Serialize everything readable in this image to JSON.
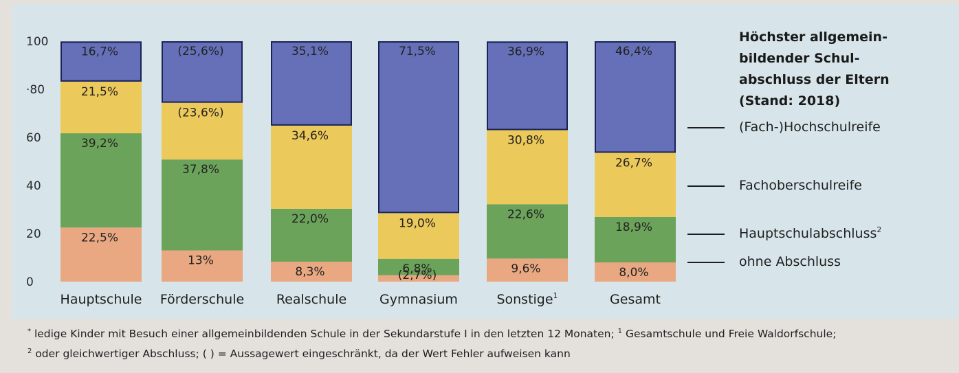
{
  "chart_data": {
    "type": "bar",
    "stacked": true,
    "categories": [
      "Hauptschule",
      "Förderschule",
      "Realschule",
      "Gymnasium",
      "Sonstige",
      "Gesamt"
    ],
    "category_superscripts": [
      "",
      "",
      "",
      "",
      "1",
      ""
    ],
    "yticks": [
      "100",
      "·80",
      "60",
      "40",
      "20",
      "0"
    ],
    "ylim": [
      0,
      100
    ],
    "title": [
      "Höchster allgemein-",
      "bildender Schul-",
      "abschluss der Eltern",
      "(Stand: 2018)"
    ],
    "series": [
      {
        "name": "ohne Abschluss",
        "superscript": "",
        "color": "#e9a882",
        "values": [
          22.5,
          13,
          8.3,
          2.7,
          9.6,
          8.0
        ],
        "labels": [
          "22,5%",
          "13%",
          "8,3%",
          "(2,7%)",
          "9,6%",
          "8,0%"
        ]
      },
      {
        "name": "Hauptschulabschluss",
        "superscript": "2",
        "color": "#6ca35a",
        "values": [
          39.2,
          37.8,
          22.0,
          6.8,
          22.6,
          18.9
        ],
        "labels": [
          "39,2%",
          "37,8%",
          "22,0%",
          "6,8%",
          "22,6%",
          "18,9%"
        ]
      },
      {
        "name": "Fachoberschulreife",
        "superscript": "",
        "color": "#ecc95b",
        "values": [
          21.5,
          23.6,
          34.6,
          19.0,
          30.8,
          26.7
        ],
        "labels": [
          "21,5%",
          "(23,6%)",
          "34,6%",
          "19,0%",
          "30,8%",
          "26,7%"
        ]
      },
      {
        "name": "(Fach-)Hochschulreife",
        "superscript": "",
        "color": "#6570b8",
        "values": [
          16.7,
          25.6,
          35.1,
          71.5,
          36.9,
          46.4
        ],
        "labels": [
          "16,7%",
          "(25,6%)",
          "35,1%",
          "71,5%",
          "36,9%",
          "46,4%"
        ]
      }
    ],
    "legend_position": "right"
  },
  "footnote": {
    "line1_marker": "*",
    "line1": "ledige Kinder mit Besuch einer allgemeinbildenden Schule in der Sekundarstufe I in den letzten 12 Monaten;",
    "line1_marker2": "1",
    "line1b": "Gesamtschule und Freie Waldorfschule;",
    "line2_marker": "2",
    "line2": "oder gleichwertiger Abschluss; ( ) = Aussagewert eingeschränkt, da der Wert Fehler aufweisen kann"
  }
}
